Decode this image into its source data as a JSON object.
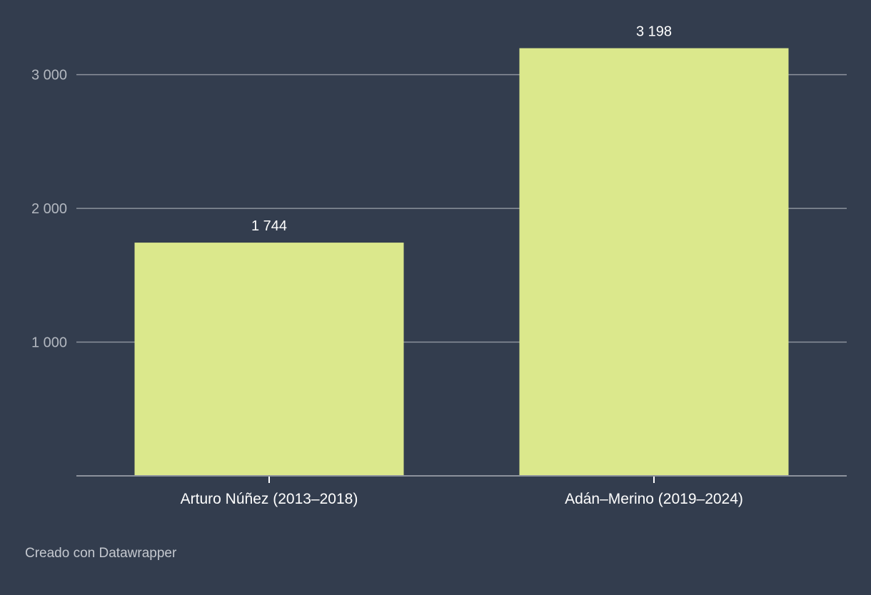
{
  "chart_data": {
    "type": "bar",
    "categories": [
      "Arturo Núñez (2013–2018)",
      "Adán–Merino (2019–2024)"
    ],
    "values": [
      1744,
      3198
    ],
    "value_labels": [
      "1 744",
      "3 198"
    ],
    "y_ticks": [
      {
        "value": 1000,
        "label": "1 000"
      },
      {
        "value": 2000,
        "label": "2 000"
      },
      {
        "value": 3000,
        "label": "3 000"
      }
    ],
    "ylim": [
      0,
      3198
    ],
    "grid": true,
    "title": "",
    "xlabel": "",
    "ylabel": ""
  },
  "colors": {
    "background": "#333d4e",
    "bar": "#dbe88c",
    "grid": "#8c929c",
    "tick_text": "#b3b8c0",
    "label_text": "#ffffff",
    "footer_text": "#c4c8cf"
  },
  "footer": {
    "credit": "Creado con Datawrapper"
  }
}
